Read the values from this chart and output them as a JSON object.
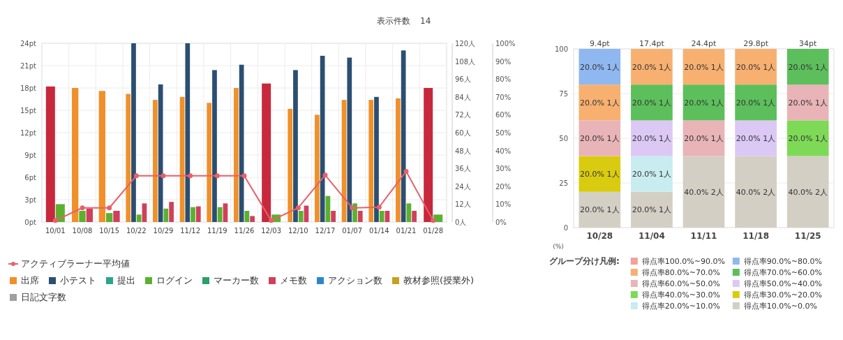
{
  "chart_data": [
    {
      "type": "bar",
      "categories": [
        "10/01",
        "10/08",
        "10/15",
        "10/22",
        "10/29",
        "11/12",
        "11/19",
        "11/26",
        "12/03",
        "12/10",
        "12/17",
        "01/07",
        "01/14",
        "01/21",
        "01/28"
      ],
      "series": [
        {
          "name": "アクティブラーナー平均値",
          "type": "line",
          "color": "#e8606a",
          "marker": "circle",
          "axis": "y",
          "values": [
            0.2,
            1.9,
            1.9,
            6.2,
            6.2,
            6.2,
            6.2,
            6.2,
            0.2,
            1.9,
            6.3,
            1.9,
            2.0,
            6.8,
            0.2
          ]
        },
        {
          "name": "出席",
          "type": "bar",
          "axis": "y2",
          "color": "#f0902a",
          "colors": [
            "#c8283c",
            "#f0902a",
            "#f0902a",
            "#f0902a",
            "#f0902a",
            "#f0902a",
            "#f0902a",
            "#f0902a",
            "#c8283c",
            "#f0902a",
            "#f0902a",
            "#f0902a",
            "#f0902a",
            "#f0902a",
            "#c8283c"
          ],
          "values": [
            91,
            90,
            88,
            86,
            82,
            84,
            80,
            90,
            93,
            76,
            72,
            82,
            82,
            83,
            90
          ]
        },
        {
          "name": "小テスト",
          "type": "bar",
          "axis": "y3",
          "color": "#2b4f72",
          "values": [
            null,
            null,
            null,
            100,
            77,
            100,
            85,
            88,
            null,
            85,
            93,
            92,
            70,
            96,
            null
          ]
        },
        {
          "name": "提出",
          "type": "bar",
          "color": "#2aa58a",
          "values": [
            null,
            null,
            null,
            null,
            null,
            null,
            null,
            null,
            null,
            null,
            null,
            null,
            null,
            null,
            null
          ]
        },
        {
          "name": "ログイン",
          "type": "bar",
          "axis": "y",
          "color": "#5cb030",
          "values": [
            2.4,
            1.5,
            1.2,
            1.0,
            1.8,
            2.0,
            2.0,
            1.5,
            1.0,
            1.5,
            3.5,
            2.5,
            1.5,
            2.5,
            1.0
          ]
        },
        {
          "name": "マーカー数",
          "type": "bar",
          "color": "#28a068",
          "values": [
            null,
            null,
            null,
            null,
            null,
            null,
            null,
            null,
            null,
            null,
            null,
            null,
            null,
            null,
            null
          ]
        },
        {
          "name": "メモ数",
          "type": "bar",
          "axis": "y",
          "color": "#d0405a",
          "values": [
            null,
            1.8,
            1.5,
            2.5,
            2.7,
            2.1,
            2.5,
            0.8,
            null,
            2.2,
            1.5,
            1.5,
            1.5,
            1.5,
            null
          ]
        },
        {
          "name": "アクション数",
          "type": "bar",
          "color": "#2a88c8",
          "values": [
            null,
            null,
            null,
            null,
            null,
            null,
            null,
            null,
            null,
            null,
            null,
            null,
            null,
            null,
            null
          ]
        },
        {
          "name": "教材参照(授業外)",
          "type": "bar",
          "color": "#c8a020",
          "values": [
            null,
            null,
            null,
            null,
            null,
            null,
            null,
            null,
            null,
            null,
            null,
            null,
            null,
            null,
            null
          ]
        },
        {
          "name": "日記文字数",
          "type": "bar",
          "color": "#a0a0a0",
          "values": [
            null,
            null,
            null,
            null,
            null,
            null,
            null,
            null,
            null,
            null,
            null,
            null,
            null,
            null,
            null
          ]
        }
      ],
      "ylim": [
        0,
        24
      ],
      "yticks": [
        {
          "value": 0,
          "label": "0pt"
        },
        {
          "value": 3,
          "label": "3pt"
        },
        {
          "value": 6,
          "label": "6pt"
        },
        {
          "value": 9,
          "label": "9pt"
        },
        {
          "value": 12,
          "label": "12pt"
        },
        {
          "value": 15,
          "label": "15pt"
        },
        {
          "value": 18,
          "label": "18pt"
        },
        {
          "value": 21,
          "label": "21pt"
        },
        {
          "value": 24,
          "label": "24pt"
        }
      ],
      "y2lim": [
        0,
        120
      ],
      "y2ticks": [
        {
          "value": 0,
          "label": "0人"
        },
        {
          "value": 12,
          "label": "12人"
        },
        {
          "value": 24,
          "label": "24人"
        },
        {
          "value": 36,
          "label": "36人"
        },
        {
          "value": 48,
          "label": "48人"
        },
        {
          "value": 60,
          "label": "60人"
        },
        {
          "value": 72,
          "label": "72人"
        },
        {
          "value": 84,
          "label": "84人"
        },
        {
          "value": 96,
          "label": "96人"
        },
        {
          "value": 108,
          "label": "108人"
        },
        {
          "value": 120,
          "label": "120人"
        }
      ],
      "y3lim": [
        0,
        100
      ],
      "y3ticks": [
        {
          "value": 0,
          "label": "0%"
        },
        {
          "value": 10,
          "label": "10%"
        },
        {
          "value": 20,
          "label": "20%"
        },
        {
          "value": 30,
          "label": "30%"
        },
        {
          "value": 40,
          "label": "40%"
        },
        {
          "value": 50,
          "label": "50%"
        },
        {
          "value": 60,
          "label": "60%"
        },
        {
          "value": 70,
          "label": "70%"
        },
        {
          "value": 80,
          "label": "80%"
        },
        {
          "value": 90,
          "label": "90%"
        },
        {
          "value": 100,
          "label": "100%"
        }
      ],
      "grid": true,
      "legend": "bottom",
      "annotations": [
        "表示件数",
        "14"
      ]
    },
    {
      "type": "bar",
      "stacked": true,
      "categories": [
        "10/28",
        "11/04",
        "11/11",
        "11/18",
        "11/25"
      ],
      "ylabel": "(%)",
      "legend_title": "グループ分け凡例:",
      "legend": "bottom",
      "grid": "y",
      "ylim": [
        0,
        100
      ],
      "yticks": [
        0,
        25,
        50,
        75,
        100
      ],
      "annotations": [
        {
          "text": "9.4pt",
          "x": "10/28",
          "y": 100
        },
        {
          "text": "17.4pt",
          "x": "11/04",
          "y": 100
        },
        {
          "text": "24.4pt",
          "x": "11/11",
          "y": 100
        },
        {
          "text": "29.8pt",
          "x": "11/18",
          "y": 100
        },
        {
          "text": "34pt",
          "x": "11/25",
          "y": 100
        }
      ],
      "series": [
        {
          "name": "得点率10.0%~0.0%",
          "color": "#d4cfc4",
          "values": [
            20,
            20,
            40,
            40,
            40
          ],
          "value_labels": [
            "20.0% 1人",
            "20.0% 1人",
            "40.0% 2人",
            "40.0% 2人",
            "40.0% 2人"
          ]
        },
        {
          "name": "得点率20.0%~10.0%",
          "color": "#c8ecf0",
          "values": [
            null,
            20,
            null,
            null,
            null
          ],
          "value_labels": [
            null,
            "20.0% 1人",
            null,
            null,
            null
          ]
        },
        {
          "name": "得点率30.0%~20.0%",
          "color": "#d9cc10",
          "values": [
            20,
            null,
            null,
            null,
            null
          ],
          "value_labels": [
            "20.0% 1人",
            null,
            null,
            null,
            null
          ]
        },
        {
          "name": "得点率40.0%~30.0%",
          "color": "#7ed957",
          "values": [
            null,
            null,
            null,
            null,
            20
          ],
          "value_labels": [
            null,
            null,
            null,
            null,
            "20.0% 1人"
          ]
        },
        {
          "name": "得点率50.0%~40.0%",
          "color": "#dcc8f4",
          "values": [
            null,
            20,
            null,
            20,
            null
          ],
          "value_labels": [
            null,
            "20.0% 1人",
            null,
            "20.0% 1人",
            null
          ]
        },
        {
          "name": "得点率60.0%~50.0%",
          "color": "#e8b4b8",
          "values": [
            20,
            null,
            20,
            null,
            20
          ],
          "value_labels": [
            "20.0% 1人",
            null,
            "20.0% 1人",
            null,
            "20.0% 1人"
          ]
        },
        {
          "name": "得点率70.0%~60.0%",
          "color": "#5cbf5c",
          "values": [
            null,
            20,
            20,
            20,
            20
          ],
          "value_labels": [
            null,
            "20.0% 1人",
            "20.0% 1人",
            "20.0% 1人",
            "20.0% 1人"
          ]
        },
        {
          "name": "得点率80.0%~70.0%",
          "color": "#f7b070",
          "values": [
            20,
            20,
            20,
            20,
            null
          ],
          "value_labels": [
            "20.0% 1人",
            "20.0% 1人",
            "20.0% 1人",
            "20.0% 1人",
            null
          ]
        },
        {
          "name": "得点率90.0%~80.0%",
          "color": "#8fb8f0",
          "values": [
            20,
            null,
            null,
            null,
            null
          ],
          "value_labels": [
            "20.0% 1人",
            null,
            null,
            null,
            null
          ]
        },
        {
          "name": "得点率100.0%~90.0%",
          "color": "#f4a09c",
          "values": [
            null,
            null,
            null,
            null,
            null
          ],
          "value_labels": [
            null,
            null,
            null,
            null,
            null
          ]
        }
      ]
    }
  ]
}
